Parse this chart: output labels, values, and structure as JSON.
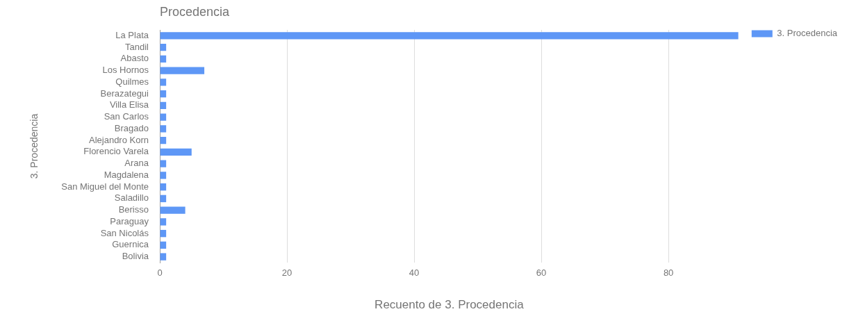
{
  "chart_data": {
    "type": "bar",
    "orientation": "horizontal",
    "title": "Procedencia",
    "xlabel": "Recuento de 3. Procedencia",
    "ylabel": "3. Procedencia",
    "categories": [
      "La Plata",
      "Tandil",
      "Abasto",
      "Los Hornos",
      "Quilmes",
      "Berazategui",
      "Villa Elisa",
      "San Carlos",
      "Bragado",
      "Alejandro Korn",
      "Florencio Varela",
      "Arana",
      "Magdalena",
      "San Miguel del Monte",
      "Saladillo",
      "Berisso",
      "Paraguay",
      "San Nicolás",
      "Guernica",
      "Bolivia"
    ],
    "series": [
      {
        "name": "3. Procedencia",
        "color": "#5e97f6",
        "values": [
          91,
          1,
          1,
          7,
          1,
          1,
          1,
          1,
          1,
          1,
          5,
          1,
          1,
          1,
          1,
          4,
          1,
          1,
          1,
          1
        ]
      }
    ],
    "xlim": [
      0,
      91
    ],
    "xticks": [
      0,
      20,
      40,
      60,
      80
    ],
    "grid": "x",
    "legend": "top right"
  }
}
